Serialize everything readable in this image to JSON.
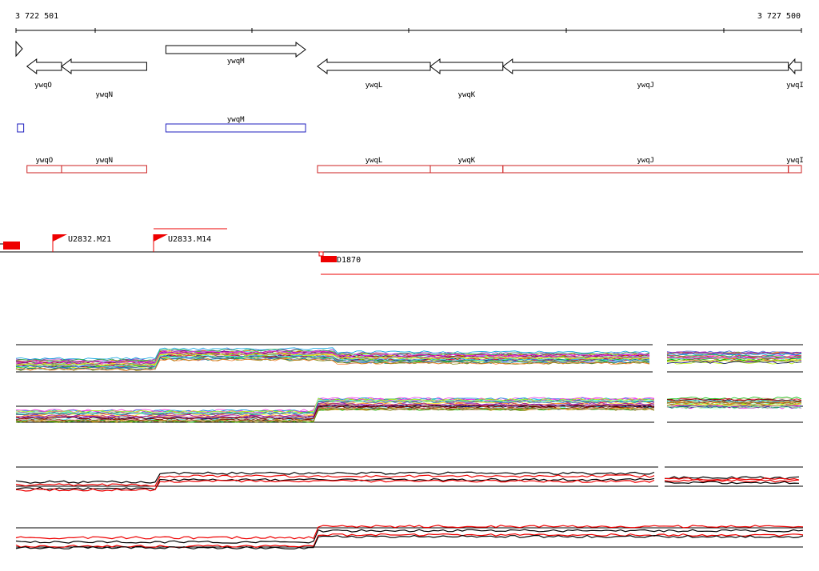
{
  "coordinates": {
    "start_label": "3 722 501",
    "end_label": "3 727 500"
  },
  "genes": [
    {
      "name": "ywqO",
      "strand": "-",
      "start": 3722571,
      "end": 3722791
    },
    {
      "name": "ywqN",
      "strand": "-",
      "start": 3722791,
      "end": 3723333
    },
    {
      "name": "ywqM",
      "strand": "+",
      "start": 3723455,
      "end": 3724344
    },
    {
      "name": "ywqL",
      "strand": "-",
      "start": 3724420,
      "end": 3725138
    },
    {
      "name": "ywqK",
      "strand": "-",
      "start": 3725138,
      "end": 3725600
    },
    {
      "name": "ywqJ",
      "strand": "-",
      "start": 3725600,
      "end": 3727417
    },
    {
      "name": "ywqI",
      "strand": "-",
      "start": 3727417,
      "end": 3727500
    }
  ],
  "plus_transcripts": [
    {
      "label": "",
      "start": 3722510,
      "end": 3722550
    },
    {
      "label": "ywqM",
      "start": 3723455,
      "end": 3724344
    }
  ],
  "minus_transcripts": [
    {
      "label": "ywqO",
      "start": 3722571,
      "end": 3722791
    },
    {
      "label": "ywqN",
      "start": 3722791,
      "end": 3723333
    },
    {
      "label": "ywqL",
      "start": 3724420,
      "end": 3725138
    },
    {
      "label": "ywqK",
      "start": 3725138,
      "end": 3725600
    },
    {
      "label": "ywqJ",
      "start": 3725600,
      "end": 3727417
    },
    {
      "label": "ywqI",
      "start": 3727417,
      "end": 3727500
    }
  ],
  "upshifts": [
    {
      "label": "U2832.M21"
    },
    {
      "label": "U2833.M14"
    }
  ],
  "downshifts": [
    {
      "label": "D1870"
    }
  ],
  "colors": {
    "gene_stroke": "#000000",
    "plus_transcript": "#1f1fbf",
    "minus_transcript": "#cc2020",
    "marker": "#ee0000",
    "axis": "#000000"
  }
}
